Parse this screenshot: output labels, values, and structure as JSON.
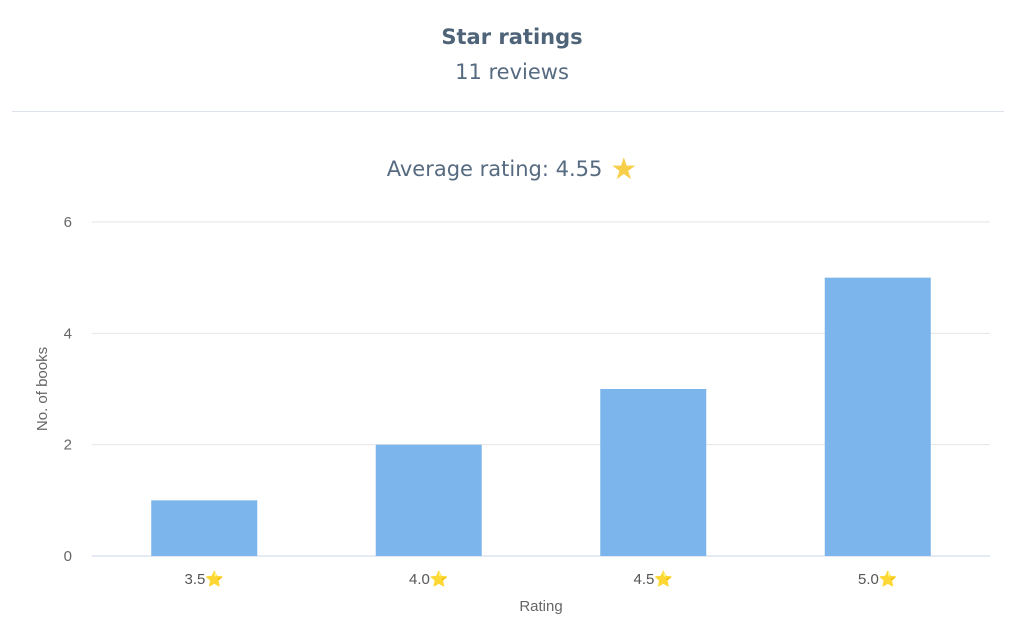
{
  "header": {
    "title": "Star ratings",
    "subtitle": "11 reviews"
  },
  "average": {
    "label": "Average rating: 4.55",
    "icon": "star-icon",
    "icon_color": "#f7cf4a"
  },
  "chart_data": {
    "type": "bar",
    "categories": [
      "3.5⭐",
      "4.0⭐",
      "4.5⭐",
      "5.0⭐"
    ],
    "values": [
      1,
      2,
      3,
      5
    ],
    "xlabel": "Rating",
    "ylabel": "No. of books",
    "ylim": [
      0,
      6
    ],
    "yticks": [
      0,
      2,
      4,
      6
    ],
    "grid": true,
    "bar_color": "#7cb5ec"
  }
}
